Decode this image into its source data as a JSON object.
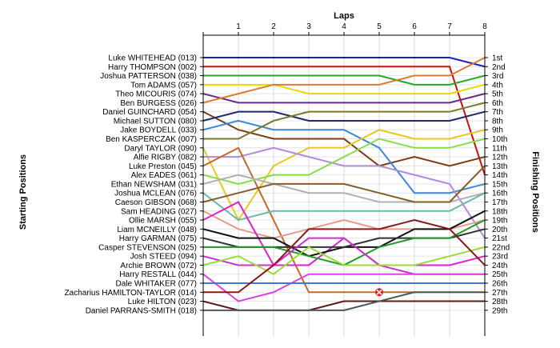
{
  "chart_data": {
    "type": "line",
    "title": "",
    "xlabel": "Laps",
    "ylabel_left": "Starting Positions",
    "ylabel_right": "Finishing Positions",
    "x": [
      0,
      1,
      2,
      3,
      4,
      5,
      6,
      7,
      8
    ],
    "x_tick_labels": [
      "1",
      "2",
      "3",
      "4",
      "5",
      "6",
      "7",
      "8"
    ],
    "ylim": [
      1,
      29
    ],
    "y_inverted": true,
    "grid": true,
    "finishing_labels": [
      "1st",
      "2nd",
      "3rd",
      "4th",
      "5th",
      "6th",
      "7th",
      "8th",
      "9th",
      "10th",
      "11th",
      "12th",
      "13th",
      "14th",
      "15th",
      "16th",
      "17th",
      "18th",
      "19th",
      "20th",
      "21st",
      "22nd",
      "23rd",
      "24th",
      "25th",
      "26th",
      "27th",
      "28th",
      "29th"
    ],
    "series": [
      {
        "name": "Luke WHITEHEAD (013)",
        "color": "#1f1fb4",
        "values": [
          1,
          1,
          1,
          1,
          1,
          1,
          1,
          1,
          2
        ]
      },
      {
        "name": "Harry THOMPSON (002)",
        "color": "#cc1111",
        "values": [
          2,
          2,
          2,
          2,
          2,
          2,
          2,
          2,
          14
        ]
      },
      {
        "name": "Joshua PATTERSON (038)",
        "color": "#22aa22",
        "values": [
          3,
          3,
          3,
          3,
          3,
          3,
          4,
          4,
          3
        ]
      },
      {
        "name": "Tom ADAMS (057)",
        "color": "#e8d800",
        "values": [
          4,
          4,
          4,
          5,
          5,
          5,
          5,
          5,
          4
        ]
      },
      {
        "name": "Theo MICOURIS (074)",
        "color": "#6a2a8a",
        "values": [
          5,
          6,
          6,
          6,
          6,
          6,
          6,
          6,
          5
        ]
      },
      {
        "name": "Ben BURGESS (026)",
        "color": "#e07a30",
        "values": [
          6,
          5,
          4,
          4,
          4,
          4,
          3,
          3,
          1
        ]
      },
      {
        "name": "Daniel GUINCHARD (054)",
        "color": "#7a3d16",
        "values": [
          7,
          9,
          10,
          10,
          10,
          13,
          12,
          13,
          12
        ]
      },
      {
        "name": "Michael SUTTON (080)",
        "color": "#1f2a6b",
        "values": [
          8,
          7,
          7,
          8,
          8,
          8,
          8,
          8,
          7
        ]
      },
      {
        "name": "Jake BOYDELL (033)",
        "color": "#3a88d8",
        "values": [
          9,
          8,
          9,
          9,
          9,
          11,
          16,
          16,
          15
        ]
      },
      {
        "name": "Ben KASPERCZAK (007)",
        "color": "#7a7a2a",
        "values": [
          10,
          10,
          8,
          7,
          7,
          7,
          7,
          7,
          6
        ]
      },
      {
        "name": "Daryl TAYLOR (090)",
        "color": "#e8c820",
        "values": [
          11,
          19,
          13,
          11,
          11,
          9,
          10,
          10,
          9
        ]
      },
      {
        "name": "Alfie RIGBY (082)",
        "color": "#b48ad8",
        "values": [
          12,
          12,
          11,
          12,
          13,
          13,
          14,
          15,
          21
        ]
      },
      {
        "name": "Luke Preston (045)",
        "color": "#c06a2a",
        "values": [
          13,
          11,
          19,
          27,
          27,
          27,
          27,
          27,
          27
        ]
      },
      {
        "name": "Alex EADES (061)",
        "color": "#88dd44",
        "values": [
          14,
          15,
          14,
          14,
          12,
          10,
          11,
          11,
          10
        ]
      },
      {
        "name": "Ethan NEWSHAM (031)",
        "color": "#b0b0b0",
        "values": [
          15,
          14,
          15,
          16,
          16,
          17,
          17,
          17,
          16
        ]
      },
      {
        "name": "Joshua MCLEAN (076)",
        "color": "#66bbaa",
        "values": [
          16,
          19,
          18,
          18,
          18,
          18,
          18,
          18,
          16
        ]
      },
      {
        "name": "Caeson GIBSON (068)",
        "color": "#8a5a2a",
        "values": [
          17,
          16,
          15,
          15,
          15,
          16,
          17,
          17,
          13
        ]
      },
      {
        "name": "Sam HEADING (027)",
        "color": "#e89a8a",
        "values": [
          18,
          20,
          21,
          20,
          19,
          20,
          20,
          20,
          19
        ]
      },
      {
        "name": "Ollie MARSH (055)",
        "color": "#dd22cc",
        "values": [
          19,
          17,
          24,
          24,
          21,
          24,
          24,
          24,
          23
        ]
      },
      {
        "name": "Liam MCNEILLY (048)",
        "color": "#111111",
        "values": [
          20,
          21,
          21,
          23,
          22,
          22,
          20,
          20,
          18
        ]
      },
      {
        "name": "Harry GARMAN (075)",
        "color": "#333333",
        "values": [
          21,
          22,
          22,
          22,
          22,
          21,
          21,
          21,
          20
        ]
      },
      {
        "name": "Casper STEVENSON (025)",
        "color": "#229922",
        "values": [
          22,
          22,
          22,
          23,
          24,
          22,
          21,
          21,
          19
        ]
      },
      {
        "name": "Josh STEED (094)",
        "color": "#cc33cc",
        "values": [
          23,
          24,
          24,
          21,
          21,
          24,
          25,
          25,
          25
        ]
      },
      {
        "name": "Archie BROWN (072)",
        "color": "#99dd33",
        "values": [
          24,
          23,
          25,
          22,
          24,
          24,
          24,
          23,
          22
        ]
      },
      {
        "name": "Harry RESTALL (044)",
        "color": "#dd44dd",
        "values": [
          25,
          28,
          27,
          25,
          25,
          25,
          25,
          25,
          25
        ]
      },
      {
        "name": "Dale WHITAKER (077)",
        "color": "#3a7ad8",
        "values": [
          26,
          26,
          26,
          26,
          26,
          26,
          26,
          26,
          26
        ]
      },
      {
        "name": "Zacharius HAMILTON-TAYLOR (014)",
        "color": "#8a1a1a",
        "values": [
          27,
          27,
          24,
          20,
          20,
          20,
          19,
          20,
          24
        ]
      },
      {
        "name": "Luke HILTON (023)",
        "color": "#5a1a1a",
        "values": [
          28,
          29,
          29,
          29,
          28,
          28,
          28,
          28,
          28
        ]
      },
      {
        "name": "Daniel PARRANS-SMITH (018)",
        "color": "#4a5a5a",
        "values": [
          29,
          29,
          29,
          29,
          29,
          28,
          27,
          27,
          27
        ]
      }
    ],
    "retired_marker": {
      "series": "Luke Preston (045)",
      "lap": 5,
      "position": 27,
      "color": "#dd2222"
    }
  }
}
